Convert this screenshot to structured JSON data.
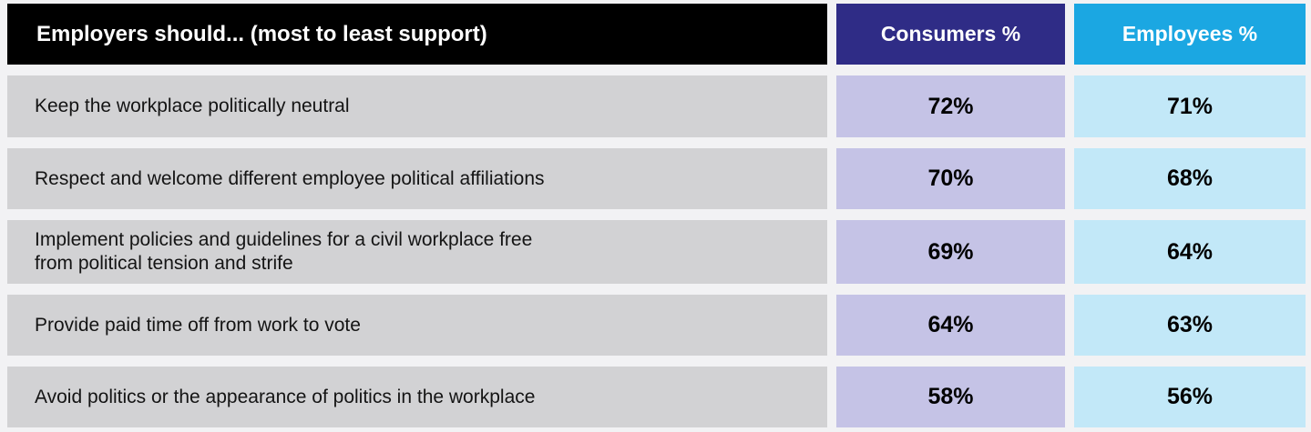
{
  "colors": {
    "page_background": "#F2F2F4",
    "label_header_bg": "#000000",
    "consumers_header_bg": "#2F2C86",
    "employees_header_bg": "#1BA7E2",
    "row_label_bg": "#D2D2D4",
    "consumers_cell_bg": "#C5C3E6",
    "employees_cell_bg": "#C2E8F8",
    "header_text": "#FFFFFF",
    "body_text": "#141414"
  },
  "table": {
    "header": {
      "label": "Employers should... (most to least support)",
      "consumers": "Consumers %",
      "employees": "Employees %"
    },
    "rows": [
      {
        "label": "Keep the workplace politically neutral",
        "consumers": "72%",
        "employees": "71%"
      },
      {
        "label": "Respect and welcome different employee political affiliations",
        "consumers": "70%",
        "employees": "68%"
      },
      {
        "label": "Implement policies and guidelines for a civil workplace free\nfrom political tension and strife",
        "consumers": "69%",
        "employees": "64%"
      },
      {
        "label": "Provide paid time off from work to vote",
        "consumers": "64%",
        "employees": "63%"
      },
      {
        "label": "Avoid politics or the appearance of politics in the workplace",
        "consumers": "58%",
        "employees": "56%"
      }
    ]
  },
  "chart_data": {
    "type": "table",
    "title": "Employers should... (most to least support)",
    "columns": [
      "Employers should... (most to least support)",
      "Consumers %",
      "Employees %"
    ],
    "categories": [
      "Keep the workplace politically neutral",
      "Respect and welcome different employee political affiliations",
      "Implement policies and guidelines for a civil workplace free from political tension and strife",
      "Provide paid time off from work to vote",
      "Avoid politics or the appearance of politics in the workplace"
    ],
    "series": [
      {
        "name": "Consumers %",
        "values": [
          72,
          70,
          69,
          64,
          58
        ]
      },
      {
        "name": "Employees %",
        "values": [
          71,
          68,
          64,
          63,
          56
        ]
      }
    ],
    "value_unit": "%",
    "sort_order": "descending by support"
  }
}
